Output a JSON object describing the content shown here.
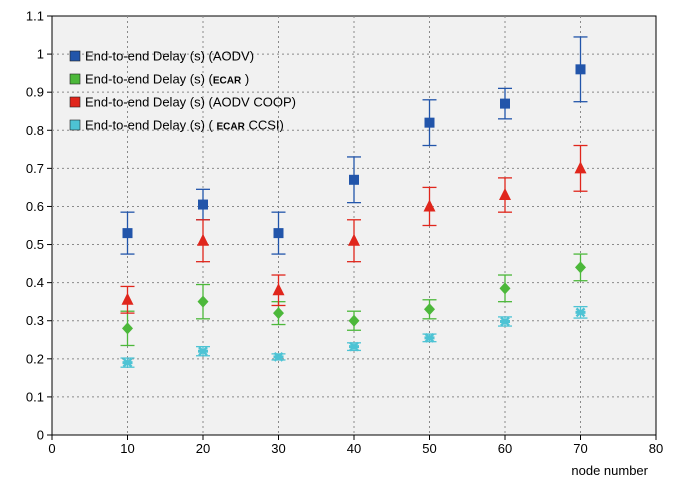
{
  "chart_data": {
    "type": "scatter",
    "title": "",
    "xlabel": "node number",
    "ylabel": "",
    "xlim": [
      0,
      80
    ],
    "ylim": [
      0,
      1.1
    ],
    "x_ticks": [
      0,
      10,
      20,
      30,
      40,
      50,
      60,
      70,
      80
    ],
    "y_ticks": [
      0,
      0.1,
      0.2,
      0.3,
      0.4,
      0.5,
      0.6,
      0.7,
      0.8,
      0.9,
      1,
      1.1
    ],
    "grid": true,
    "legend_position": "top-left",
    "error_bars": true,
    "series": [
      {
        "name": "End-to-end Delay (s) (AODV)",
        "legend_parts": [
          {
            "text": "End-to-end Delay (s) (AODV)",
            "strong": false
          }
        ],
        "color": "#2255aa",
        "marker": "square",
        "x": [
          10,
          20,
          30,
          40,
          50,
          60,
          70
        ],
        "values": [
          0.53,
          0.605,
          0.53,
          0.67,
          0.82,
          0.87,
          0.96
        ],
        "error": [
          0.055,
          0.04,
          0.055,
          0.06,
          0.06,
          0.04,
          0.085
        ]
      },
      {
        "name": "End-to-end Delay (s) (ECAR )",
        "legend_parts": [
          {
            "text": "End-to-end Delay (s) (",
            "strong": false
          },
          {
            "text": "ECAR",
            "strong": true
          },
          {
            "text": " )",
            "strong": false
          }
        ],
        "color": "#4cb83a",
        "marker": "diamond",
        "x": [
          10,
          20,
          30,
          40,
          50,
          60,
          70
        ],
        "values": [
          0.28,
          0.35,
          0.32,
          0.3,
          0.33,
          0.385,
          0.44
        ],
        "error": [
          0.045,
          0.045,
          0.03,
          0.025,
          0.025,
          0.035,
          0.035
        ]
      },
      {
        "name": "End-to-end Delay (s) (AODV COOP)",
        "legend_parts": [
          {
            "text": "End-to-end Delay (s) (AODV COOP)",
            "strong": false
          }
        ],
        "color": "#e0261c",
        "marker": "triangle",
        "x": [
          10,
          20,
          30,
          40,
          50,
          60,
          70
        ],
        "values": [
          0.355,
          0.51,
          0.38,
          0.51,
          0.6,
          0.63,
          0.7
        ],
        "error": [
          0.035,
          0.055,
          0.04,
          0.055,
          0.05,
          0.045,
          0.06
        ]
      },
      {
        "name": "End-to-end Delay (s) ( ECAR CCSI)",
        "legend_parts": [
          {
            "text": "End-to-end Delay (s) ( ",
            "strong": false
          },
          {
            "text": "ECAR",
            "strong": true
          },
          {
            "text": " CCSI)",
            "strong": false
          }
        ],
        "color": "#4dc3d4",
        "marker": "star",
        "x": [
          10,
          20,
          30,
          40,
          50,
          60,
          70
        ],
        "values": [
          0.19,
          0.22,
          0.205,
          0.232,
          0.255,
          0.298,
          0.322
        ],
        "error": [
          0.012,
          0.012,
          0.008,
          0.01,
          0.01,
          0.012,
          0.015
        ]
      }
    ]
  }
}
